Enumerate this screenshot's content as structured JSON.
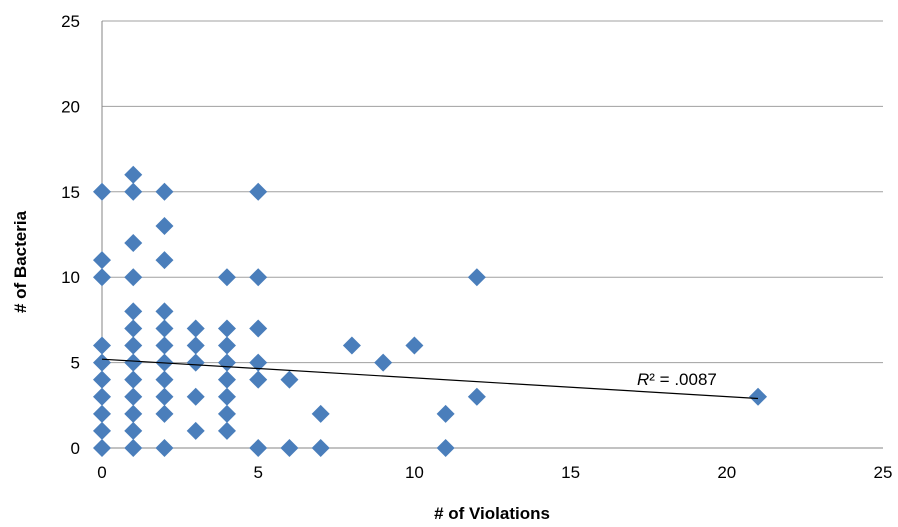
{
  "chart_data": {
    "type": "scatter",
    "title": "",
    "xlabel": "# of Violations",
    "ylabel": "# of Bacteria",
    "xlim": [
      0,
      25
    ],
    "ylim": [
      0,
      25
    ],
    "xticks": [
      "0",
      "5",
      "10",
      "15",
      "20",
      "25"
    ],
    "yticks": [
      "0",
      "5",
      "10",
      "15",
      "20",
      "25"
    ],
    "grid": "horizontal",
    "marker_color": "#4a7ebb",
    "trendline": {
      "type": "linear",
      "x": [
        0,
        21
      ],
      "y": [
        5.2,
        2.9
      ],
      "label": "R² = .0087"
    },
    "points": [
      [
        0,
        15
      ],
      [
        0,
        11
      ],
      [
        0,
        10
      ],
      [
        0,
        6
      ],
      [
        0,
        5
      ],
      [
        0,
        4
      ],
      [
        0,
        3
      ],
      [
        0,
        2
      ],
      [
        0,
        1
      ],
      [
        0,
        0
      ],
      [
        1,
        16
      ],
      [
        1,
        15
      ],
      [
        1,
        12
      ],
      [
        1,
        10
      ],
      [
        1,
        8
      ],
      [
        1,
        7
      ],
      [
        1,
        6
      ],
      [
        1,
        5
      ],
      [
        1,
        4
      ],
      [
        1,
        3
      ],
      [
        1,
        2
      ],
      [
        1,
        1
      ],
      [
        1,
        0
      ],
      [
        2,
        15
      ],
      [
        2,
        13
      ],
      [
        2,
        11
      ],
      [
        2,
        8
      ],
      [
        2,
        7
      ],
      [
        2,
        6
      ],
      [
        2,
        5
      ],
      [
        2,
        4
      ],
      [
        2,
        3
      ],
      [
        2,
        2
      ],
      [
        2,
        0
      ],
      [
        3,
        7
      ],
      [
        3,
        6
      ],
      [
        3,
        5
      ],
      [
        3,
        3
      ],
      [
        3,
        1
      ],
      [
        4,
        10
      ],
      [
        4,
        7
      ],
      [
        4,
        6
      ],
      [
        4,
        5
      ],
      [
        4,
        4
      ],
      [
        4,
        3
      ],
      [
        4,
        2
      ],
      [
        4,
        1
      ],
      [
        5,
        15
      ],
      [
        5,
        10
      ],
      [
        5,
        7
      ],
      [
        5,
        5
      ],
      [
        5,
        4
      ],
      [
        5,
        0
      ],
      [
        6,
        4
      ],
      [
        6,
        0
      ],
      [
        7,
        2
      ],
      [
        7,
        0
      ],
      [
        8,
        6
      ],
      [
        9,
        5
      ],
      [
        10,
        6
      ],
      [
        11,
        2
      ],
      [
        11,
        0
      ],
      [
        12,
        10
      ],
      [
        12,
        3
      ],
      [
        21,
        3
      ]
    ]
  }
}
